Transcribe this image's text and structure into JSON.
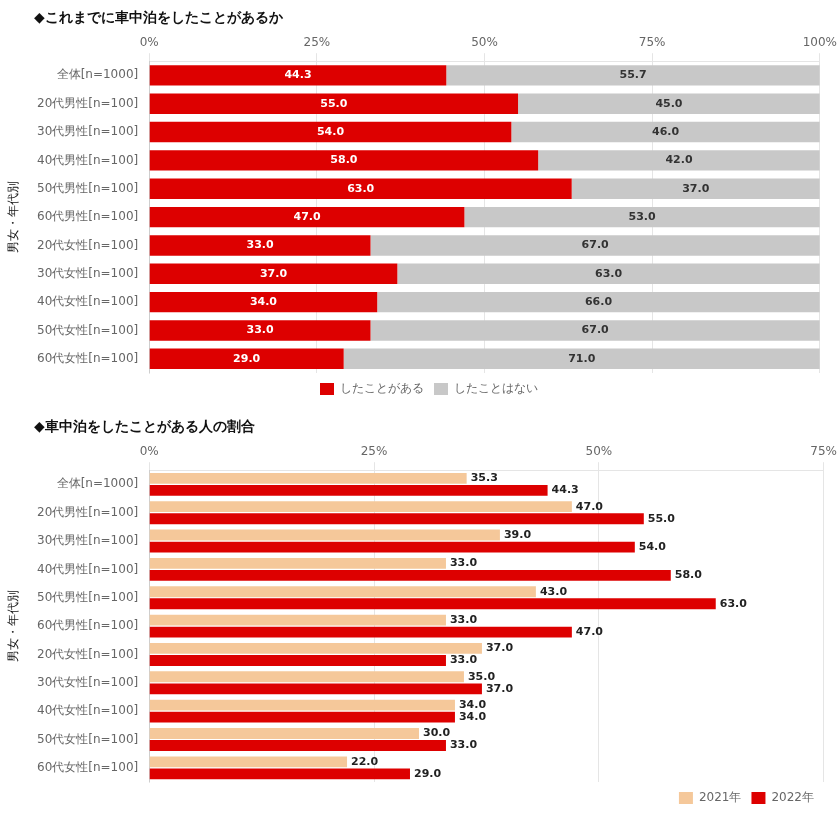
{
  "chart_data": [
    {
      "type": "bar",
      "title": "◆これまでに車中泊をしたことがあるか",
      "orientation": "horizontal",
      "stacked": true,
      "data_labels": true,
      "grid": true,
      "legend": "lower center",
      "annotations": [
        "男女・年代別"
      ],
      "categories": [
        "全体[n=1000]",
        "20代男性[n=100]",
        "30代男性[n=100]",
        "40代男性[n=100]",
        "50代男性[n=100]",
        "60代男性[n=100]",
        "20代女性[n=100]",
        "30代女性[n=100]",
        "40代女性[n=100]",
        "50代女性[n=100]",
        "60代女性[n=100]"
      ],
      "xlim": [
        0,
        100
      ],
      "xticks": [
        {
          "value": 0,
          "label": "0%"
        },
        {
          "value": 25,
          "label": "25%"
        },
        {
          "value": 50,
          "label": "50%"
        },
        {
          "value": 75,
          "label": "75%"
        },
        {
          "value": 100,
          "label": "100%"
        }
      ],
      "series": [
        {
          "name": "したことがある",
          "color": "#dd0000",
          "values": [
            44.3,
            55.0,
            54.0,
            58.0,
            63.0,
            47.0,
            33.0,
            37.0,
            34.0,
            33.0,
            29.0
          ],
          "value_labels": [
            "44.3",
            "55.0",
            "54.0",
            "58.0",
            "63.0",
            "47.0",
            "33.0",
            "37.0",
            "34.0",
            "33.0",
            "29.0"
          ]
        },
        {
          "name": "したことはない",
          "color": "#c8c8c8",
          "values": [
            55.7,
            45.0,
            46.0,
            42.0,
            37.0,
            53.0,
            67.0,
            63.0,
            66.0,
            67.0,
            71.0
          ],
          "value_labels": [
            "55.7",
            "45.0",
            "46.0",
            "42.0",
            "37.0",
            "53.0",
            "67.0",
            "63.0",
            "66.0",
            "67.0",
            "71.0"
          ]
        }
      ]
    },
    {
      "type": "bar",
      "title": "◆車中泊をしたことがある人の割合",
      "orientation": "horizontal",
      "stacked": false,
      "data_labels": true,
      "grid": true,
      "legend": "lower right",
      "annotations": [
        "男女・年代別"
      ],
      "categories": [
        "全体[n=1000]",
        "20代男性[n=100]",
        "30代男性[n=100]",
        "40代男性[n=100]",
        "50代男性[n=100]",
        "60代男性[n=100]",
        "20代女性[n=100]",
        "30代女性[n=100]",
        "40代女性[n=100]",
        "50代女性[n=100]",
        "60代女性[n=100]"
      ],
      "xlim": [
        0,
        75
      ],
      "xticks": [
        {
          "value": 0,
          "label": "0%"
        },
        {
          "value": 25,
          "label": "25%"
        },
        {
          "value": 50,
          "label": "50%"
        },
        {
          "value": 75,
          "label": "75%"
        }
      ],
      "series": [
        {
          "name": "2021年",
          "color": "#f5c89a",
          "values": [
            35.3,
            47.0,
            39.0,
            33.0,
            43.0,
            33.0,
            37.0,
            35.0,
            34.0,
            30.0,
            22.0
          ],
          "value_labels": [
            "35.3",
            "47.0",
            "39.0",
            "33.0",
            "43.0",
            "33.0",
            "37.0",
            "35.0",
            "34.0",
            "30.0",
            "22.0"
          ]
        },
        {
          "name": "2022年",
          "color": "#dd0000",
          "values": [
            44.3,
            55.0,
            54.0,
            58.0,
            63.0,
            47.0,
            33.0,
            37.0,
            34.0,
            33.0,
            29.0
          ],
          "value_labels": [
            "44.3",
            "55.0",
            "54.0",
            "58.0",
            "63.0",
            "47.0",
            "33.0",
            "37.0",
            "34.0",
            "33.0",
            "29.0"
          ]
        }
      ]
    }
  ]
}
